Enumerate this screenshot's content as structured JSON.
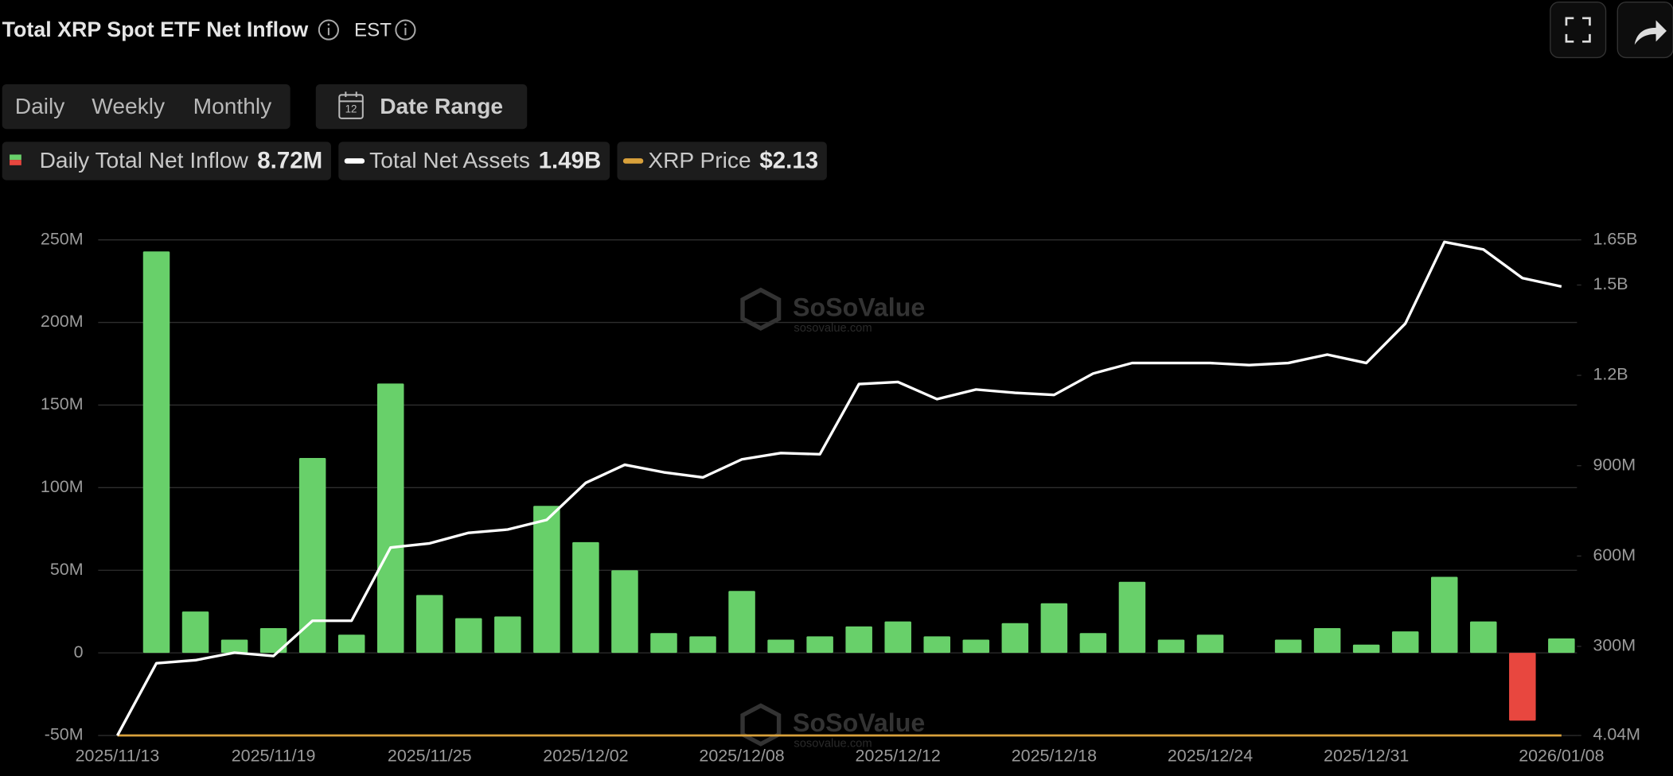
{
  "chart_data": {
    "type": "bar",
    "title": "Total XRP Spot ETF Net Inflow",
    "timezone": "EST",
    "tabs": [
      "Daily",
      "Weekly",
      "Monthly"
    ],
    "active_tab": 0,
    "date_range": "Date Range",
    "date_icon": "12",
    "watermark": "SoSoValue",
    "watermark_url": "sosovalue.com",
    "categories": [
      "2025/11/13",
      null,
      null,
      null,
      "2025/11/19",
      null,
      null,
      null,
      "2025/11/25",
      null,
      null,
      null,
      "2025/12/02",
      null,
      null,
      null,
      "2025/12/08",
      null,
      null,
      null,
      "2025/12/12",
      null,
      null,
      null,
      "2025/12/18",
      null,
      null,
      null,
      "2025/12/24",
      null,
      null,
      null,
      "2025/12/31",
      null,
      null,
      null,
      null,
      "2026/01/08"
    ],
    "series": [
      {
        "name": "Daily Total Net Inflow",
        "latest_label": "8.72M",
        "color": "#68d06a",
        "negative_color": "#e8473f",
        "values": [
          null,
          243,
          25,
          8,
          15,
          118,
          11,
          163,
          35,
          21,
          22,
          89,
          67,
          50,
          12,
          10,
          37.5,
          8,
          10,
          16,
          19,
          10,
          8,
          18,
          30,
          12,
          43,
          8,
          11,
          null,
          8,
          15,
          5,
          13,
          46,
          19,
          -41,
          8.72
        ]
      },
      {
        "name": "Total Net Assets",
        "latest_label": "1.49B",
        "color": "#ffffff",
        "axis": "y2",
        "values": [
          4.04,
          244,
          254,
          279,
          268,
          385,
          385,
          628,
          642,
          677,
          688,
          720,
          843,
          903,
          878,
          861,
          921,
          942,
          938,
          1171,
          1178,
          1121,
          1153,
          1142,
          1135,
          1206,
          1241,
          1241,
          1241,
          1234,
          1241,
          1269,
          1241,
          1372,
          1643,
          1618,
          1523,
          1495
        ]
      }
    ],
    "price": {
      "name": "XRP Price",
      "label": "$2.13",
      "color": "#d9a13b"
    },
    "ylim": [
      -50,
      250
    ],
    "yticks": [
      {
        "value": -50,
        "label": "-50M"
      },
      {
        "value": 0,
        "label": "0"
      },
      {
        "value": 50,
        "label": "50M"
      },
      {
        "value": 100,
        "label": "100M"
      },
      {
        "value": 150,
        "label": "150M"
      },
      {
        "value": 200,
        "label": "200M"
      },
      {
        "value": 250,
        "label": "250M"
      }
    ],
    "y2lim": [
      4.04,
      1650
    ],
    "y2ticks": [
      {
        "value": 4.04,
        "label": "4.04M"
      },
      {
        "value": 300,
        "label": "300M"
      },
      {
        "value": 600,
        "label": "600M"
      },
      {
        "value": 900,
        "label": "900M"
      },
      {
        "value": 1200,
        "label": "1.2B"
      },
      {
        "value": 1500,
        "label": "1.5B"
      },
      {
        "value": 1650,
        "label": "1.65B"
      }
    ],
    "grid": true
  }
}
